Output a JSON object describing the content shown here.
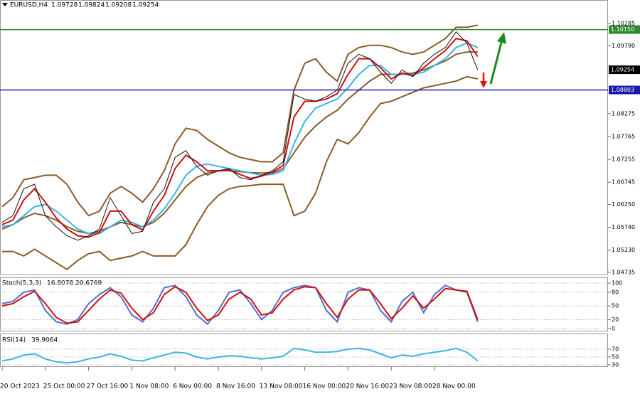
{
  "chart_data": [
    {
      "type": "line",
      "symbol": "EURUSD,H4",
      "open": 1.09728,
      "high": 1.09824,
      "low": 1.09208,
      "close": 1.09254,
      "categories": [
        "20 Oct 2023",
        null,
        null,
        null,
        "25 Oct 00:00",
        null,
        null,
        null,
        "27 Oct 16:00",
        null,
        null,
        null,
        "1 Nov 08:00",
        null,
        null,
        null,
        "6 Nov 00:00",
        null,
        null,
        null,
        "8 Nov 16:00",
        null,
        null,
        null,
        "13 Nov 08:00",
        null,
        null,
        null,
        "16 Nov 00:00",
        null,
        null,
        null,
        "20 Nov 16:00",
        null,
        null,
        null,
        "23 Nov 08:00",
        null,
        null,
        null,
        "28 Nov 00:00",
        null,
        null,
        null,
        null
      ],
      "ylim": [
        1.0467,
        1.1081
      ],
      "yticks": [
        1.10285,
        {
          "value": 1.0979,
          "label": "1.09790"
        },
        1.08275,
        1.07765,
        1.07255,
        1.06745,
        {
          "value": 1.0625,
          "label": "1.06250"
        },
        {
          "value": 1.0574,
          "label": "1.05740"
        },
        {
          "value": 1.0523,
          "label": "1.05230"
        },
        1.04735
      ],
      "grid": false,
      "levels": [
        {
          "value": 1.1015,
          "label": "1.10150",
          "color": "#2e8b2e"
        },
        {
          "value": 1.08803,
          "label": "1.08803",
          "color": "#1a1aa8"
        }
      ],
      "series": [
        {
          "color": "#8b5a2b",
          "values": [
            1.062,
            1.064,
            1.068,
            1.0685,
            1.069,
            1.069,
            1.067,
            1.063,
            1.06,
            1.061,
            1.065,
            1.0665,
            1.065,
            1.063,
            1.066,
            1.07,
            1.076,
            1.0795,
            1.079,
            1.077,
            1.0755,
            1.074,
            1.073,
            1.0725,
            1.072,
            1.072,
            1.074,
            1.088,
            1.094,
            1.095,
            1.092,
            1.09,
            1.096,
            1.0975,
            1.098,
            1.098,
            1.0975,
            1.0965,
            1.096,
            1.0965,
            1.098,
            1.0995,
            1.102,
            1.102,
            1.1025
          ]
        },
        {
          "color": "#8b5a2b",
          "values": [
            1.057,
            1.058,
            1.0595,
            1.0605,
            1.06,
            1.059,
            1.0575,
            1.0565,
            1.056,
            1.0565,
            1.0575,
            1.0585,
            1.058,
            1.0575,
            1.0585,
            1.0605,
            1.0635,
            1.0665,
            1.0685,
            1.0695,
            1.07,
            1.07,
            1.0698,
            1.0696,
            1.0695,
            1.0695,
            1.0705,
            1.074,
            1.0775,
            1.08,
            1.082,
            1.0835,
            1.086,
            1.088,
            1.09,
            1.0915,
            1.0915,
            1.0915,
            1.0918,
            1.0925,
            1.0935,
            1.0945,
            1.096,
            1.0965,
            1.0965
          ]
        },
        {
          "color": "#8b5a2b",
          "values": [
            1.052,
            1.052,
            1.051,
            1.0525,
            1.051,
            1.0495,
            1.048,
            1.05,
            1.0515,
            1.052,
            1.05,
            1.0505,
            1.051,
            1.052,
            1.051,
            1.051,
            1.051,
            1.0535,
            1.058,
            1.062,
            1.0645,
            1.066,
            1.0665,
            1.0667,
            1.067,
            1.067,
            1.067,
            1.06,
            1.061,
            1.065,
            1.072,
            1.077,
            1.076,
            1.0785,
            1.082,
            1.085,
            1.0855,
            1.0865,
            1.0875,
            1.0885,
            1.089,
            1.0895,
            1.09,
            1.091,
            1.0905
          ]
        },
        {
          "color": "#3cb4e6",
          "values": [
            1.0575,
            1.058,
            1.06,
            1.062,
            1.0625,
            1.061,
            1.059,
            1.057,
            1.056,
            1.056,
            1.0575,
            1.059,
            1.0585,
            1.0575,
            1.059,
            1.0615,
            1.065,
            1.069,
            1.071,
            1.0715,
            1.071,
            1.0705,
            1.07,
            1.0695,
            1.069,
            1.0692,
            1.07,
            1.076,
            1.081,
            1.084,
            1.085,
            1.086,
            1.0885,
            1.0915,
            1.0935,
            1.0935,
            1.0915,
            1.0915,
            1.0915,
            1.092,
            1.0935,
            1.095,
            1.0975,
            1.0985,
            1.0975
          ]
        },
        {
          "color": "#cc1010",
          "values": [
            1.058,
            1.059,
            1.0635,
            1.066,
            1.063,
            1.0595,
            1.057,
            1.0555,
            1.0552,
            1.0562,
            1.061,
            1.061,
            1.058,
            1.0568,
            1.061,
            1.0645,
            1.0705,
            1.0735,
            1.072,
            1.07,
            1.07,
            1.0702,
            1.0692,
            1.0683,
            1.0688,
            1.0697,
            1.0712,
            1.082,
            1.0855,
            1.0855,
            1.086,
            1.0872,
            1.0915,
            1.095,
            1.095,
            1.093,
            1.0905,
            1.0918,
            1.0912,
            1.093,
            1.095,
            1.0968,
            1.0995,
            1.099,
            1.0955
          ]
        },
        {
          "color": "#111111",
          "values": [
            1.0585,
            1.06,
            1.066,
            1.067,
            1.06,
            1.0575,
            1.0555,
            1.0545,
            1.0555,
            1.057,
            1.064,
            1.06,
            1.056,
            1.0565,
            1.063,
            1.066,
            1.073,
            1.0745,
            1.071,
            1.069,
            1.07,
            1.0705,
            1.0685,
            1.068,
            1.069,
            1.07,
            1.072,
            1.087,
            1.086,
            1.0855,
            1.0865,
            1.088,
            1.094,
            1.096,
            1.095,
            1.092,
            1.0895,
            1.0925,
            1.091,
            1.094,
            1.096,
            1.0975,
            1.101,
            1.0985,
            1.0925
          ]
        }
      ]
    },
    {
      "type": "line",
      "indicator": "Stoch(5,3,3)",
      "main": 16.8078,
      "signal": 20.6769,
      "ylim": [
        -6,
        111
      ],
      "yticks": [
        100,
        80,
        50,
        20,
        0
      ],
      "grid": true,
      "series": [
        {
          "color": "#5070d0",
          "values": [
            55,
            60,
            80,
            85,
            40,
            15,
            10,
            20,
            55,
            75,
            90,
            70,
            30,
            15,
            45,
            90,
            95,
            70,
            30,
            10,
            40,
            80,
            85,
            55,
            20,
            40,
            80,
            90,
            95,
            90,
            40,
            15,
            80,
            90,
            85,
            40,
            15,
            60,
            80,
            35,
            75,
            95,
            85,
            80,
            15
          ]
        },
        {
          "color": "#d01010",
          "values": [
            50,
            55,
            70,
            82,
            55,
            25,
            12,
            15,
            40,
            65,
            85,
            78,
            45,
            20,
            35,
            75,
            92,
            80,
            45,
            18,
            30,
            65,
            80,
            65,
            30,
            35,
            65,
            85,
            92,
            90,
            55,
            25,
            65,
            85,
            85,
            55,
            22,
            45,
            72,
            45,
            65,
            88,
            85,
            82,
            20
          ]
        }
      ]
    },
    {
      "type": "line",
      "indicator": "RSI(14)",
      "main": 39.9064,
      "ylim": [
        24.5,
        108
      ],
      "yticks": [
        70,
        50,
        30
      ],
      "grid": true,
      "series": [
        {
          "color": "#3cb4e6",
          "values": [
            40,
            45,
            55,
            58,
            45,
            38,
            35,
            38,
            45,
            50,
            58,
            52,
            42,
            40,
            48,
            55,
            62,
            60,
            50,
            45,
            50,
            53,
            52,
            48,
            45,
            48,
            52,
            72,
            68,
            62,
            62,
            64,
            70,
            72,
            68,
            58,
            48,
            55,
            52,
            58,
            62,
            66,
            72,
            62,
            40
          ]
        }
      ]
    }
  ]
}
